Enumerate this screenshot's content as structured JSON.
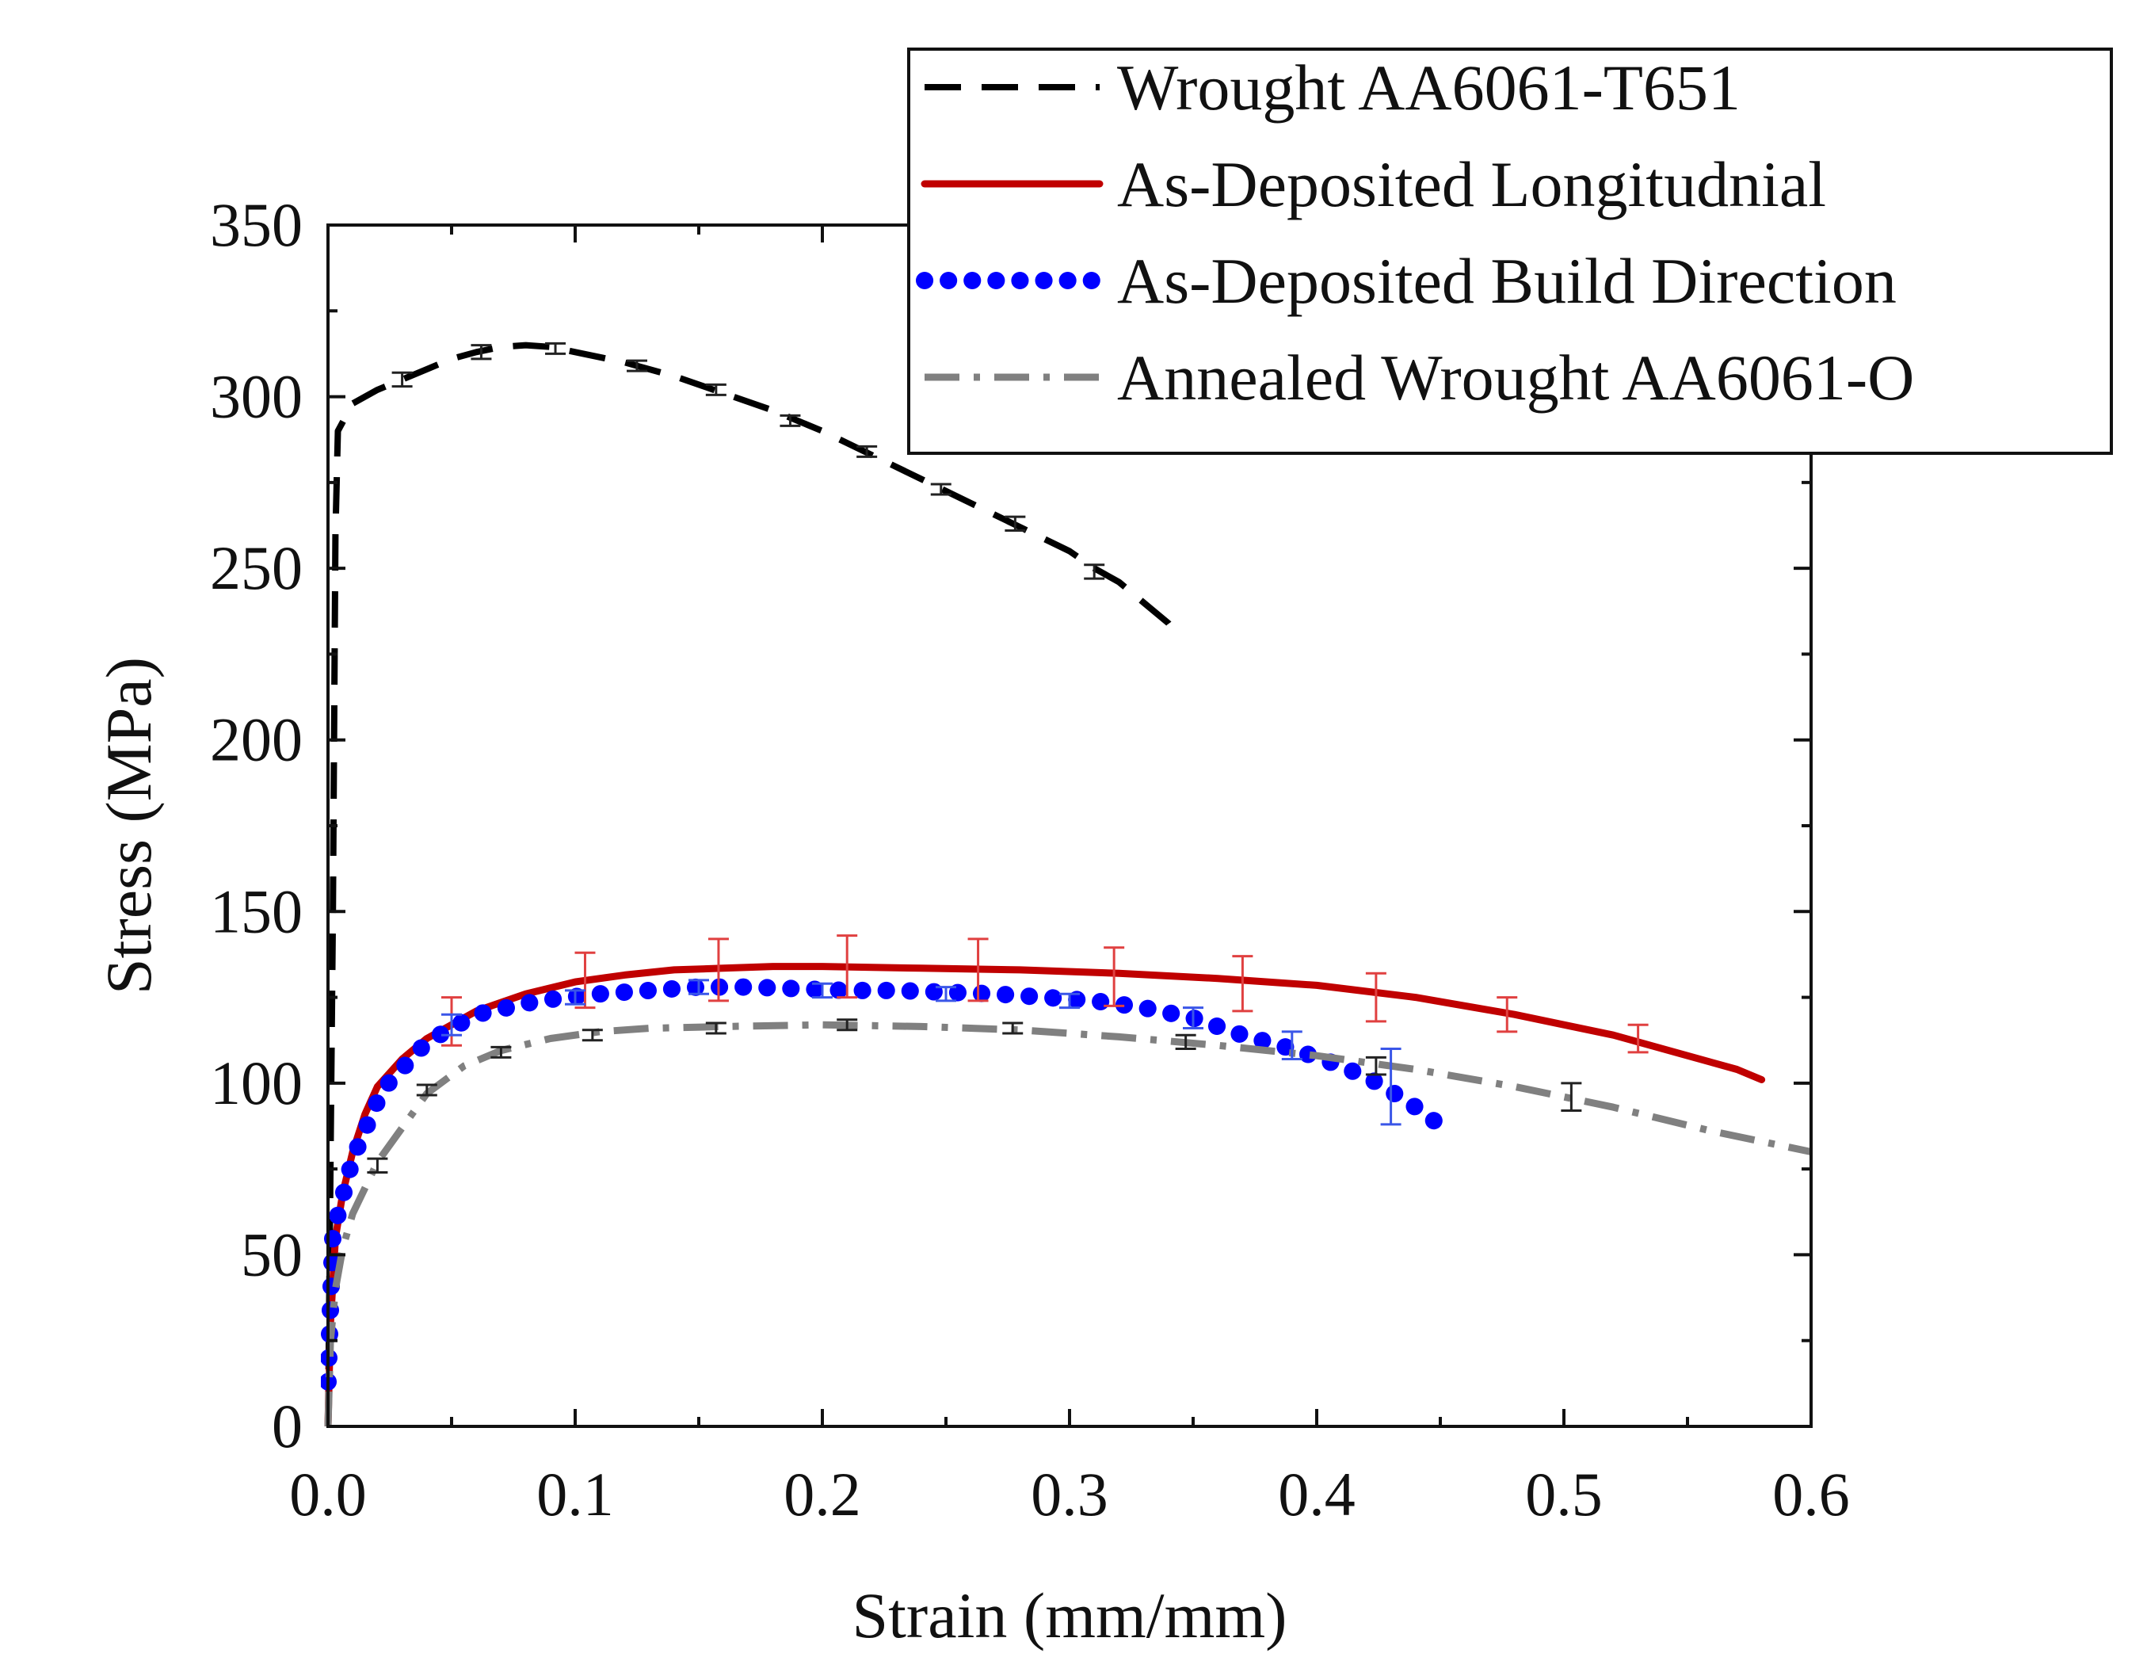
{
  "chart_data": {
    "type": "line",
    "title": "",
    "xlabel": "Strain (mm/mm)",
    "ylabel": "Stress (MPa)",
    "xlim": [
      0,
      0.6
    ],
    "ylim": [
      0,
      350
    ],
    "x_ticks": [
      0.0,
      0.1,
      0.2,
      0.3,
      0.4,
      0.5,
      0.6
    ],
    "x_tick_labels": [
      "0.0",
      "0.1",
      "0.2",
      "0.3",
      "0.4",
      "0.5",
      "0.6"
    ],
    "y_ticks": [
      0,
      50,
      100,
      150,
      200,
      250,
      300,
      350
    ],
    "y_tick_labels": [
      "0",
      "50",
      "100",
      "150",
      "200",
      "250",
      "300",
      "350"
    ],
    "grid": false,
    "legend_position": "top-right",
    "series": [
      {
        "name": "Wrought AA6061-T651",
        "color": "#000000",
        "style": "dashed",
        "points": [
          [
            0,
            0
          ],
          [
            0.002,
            150
          ],
          [
            0.003,
            260
          ],
          [
            0.004,
            290
          ],
          [
            0.01,
            298
          ],
          [
            0.02,
            302
          ],
          [
            0.03,
            305
          ],
          [
            0.04,
            308
          ],
          [
            0.05,
            311
          ],
          [
            0.06,
            313
          ],
          [
            0.07,
            314.5
          ],
          [
            0.08,
            315
          ],
          [
            0.09,
            314.5
          ],
          [
            0.1,
            313
          ],
          [
            0.12,
            310
          ],
          [
            0.14,
            306
          ],
          [
            0.16,
            301
          ],
          [
            0.18,
            296
          ],
          [
            0.2,
            290
          ],
          [
            0.22,
            283
          ],
          [
            0.24,
            276
          ],
          [
            0.26,
            269
          ],
          [
            0.28,
            262
          ],
          [
            0.3,
            255
          ],
          [
            0.31,
            250
          ],
          [
            0.32,
            246
          ],
          [
            0.33,
            240
          ],
          [
            0.34,
            234
          ],
          [
            0.345,
            229
          ]
        ],
        "error_bars": [
          [
            0.03,
            305,
            2
          ],
          [
            0.062,
            313,
            2
          ],
          [
            0.092,
            314,
            1.5
          ],
          [
            0.125,
            309,
            1.5
          ],
          [
            0.157,
            302,
            1.5
          ],
          [
            0.187,
            293,
            1.5
          ],
          [
            0.218,
            284,
            1.5
          ],
          [
            0.248,
            273,
            1.5
          ],
          [
            0.278,
            263,
            2
          ],
          [
            0.31,
            249,
            2
          ]
        ]
      },
      {
        "name": "As-Deposited Longitudnial",
        "color": "#c00000",
        "style": "solid",
        "points": [
          [
            0,
            0
          ],
          [
            0.001,
            30
          ],
          [
            0.003,
            55
          ],
          [
            0.006,
            68
          ],
          [
            0.01,
            80
          ],
          [
            0.015,
            91
          ],
          [
            0.02,
            99
          ],
          [
            0.03,
            107
          ],
          [
            0.04,
            113
          ],
          [
            0.05,
            117
          ],
          [
            0.06,
            121
          ],
          [
            0.08,
            126
          ],
          [
            0.1,
            129.5
          ],
          [
            0.12,
            131.5
          ],
          [
            0.14,
            133
          ],
          [
            0.16,
            133.5
          ],
          [
            0.18,
            134
          ],
          [
            0.2,
            134
          ],
          [
            0.24,
            133.5
          ],
          [
            0.28,
            133
          ],
          [
            0.32,
            132
          ],
          [
            0.36,
            130.5
          ],
          [
            0.4,
            128.5
          ],
          [
            0.44,
            125
          ],
          [
            0.48,
            120
          ],
          [
            0.52,
            114
          ],
          [
            0.55,
            108
          ],
          [
            0.57,
            104
          ],
          [
            0.58,
            101
          ]
        ],
        "error_bars": [
          [
            0.05,
            118,
            7
          ],
          [
            0.104,
            130,
            8
          ],
          [
            0.158,
            133,
            9
          ],
          [
            0.21,
            134,
            9
          ],
          [
            0.263,
            133,
            9
          ],
          [
            0.318,
            131,
            8.5
          ],
          [
            0.37,
            129,
            8
          ],
          [
            0.424,
            125,
            7
          ],
          [
            0.477,
            120,
            5
          ],
          [
            0.53,
            113,
            4
          ]
        ]
      },
      {
        "name": "As-Deposited Build Direction",
        "color": "#0000ff",
        "style": "dotted",
        "points": [
          [
            0,
            13
          ],
          [
            0.002,
            56
          ],
          [
            0.01,
            78
          ],
          [
            0.022,
            98
          ],
          [
            0.04,
            112
          ],
          [
            0.06,
            120
          ],
          [
            0.085,
            124
          ],
          [
            0.11,
            126
          ],
          [
            0.13,
            127
          ],
          [
            0.15,
            128
          ],
          [
            0.17,
            128
          ],
          [
            0.19,
            127.5
          ],
          [
            0.21,
            127
          ],
          [
            0.23,
            127
          ],
          [
            0.25,
            126.5
          ],
          [
            0.27,
            126
          ],
          [
            0.29,
            125
          ],
          [
            0.31,
            124
          ],
          [
            0.33,
            122
          ],
          [
            0.35,
            119
          ],
          [
            0.37,
            114
          ],
          [
            0.39,
            110
          ],
          [
            0.41,
            105
          ],
          [
            0.425,
            100
          ],
          [
            0.44,
            93
          ],
          [
            0.455,
            85
          ]
        ],
        "error_bars": [
          [
            0.05,
            117,
            3
          ],
          [
            0.1,
            125,
            2
          ],
          [
            0.15,
            128,
            2
          ],
          [
            0.2,
            127,
            2
          ],
          [
            0.25,
            126,
            2
          ],
          [
            0.3,
            124,
            2
          ],
          [
            0.35,
            119,
            3
          ],
          [
            0.39,
            111,
            4
          ],
          [
            0.43,
            99,
            11
          ]
        ]
      },
      {
        "name": "Annealed Wrought AA6061-O",
        "color": "#808080",
        "style": "dashdot",
        "points": [
          [
            0,
            0
          ],
          [
            0.001,
            25
          ],
          [
            0.003,
            40
          ],
          [
            0.006,
            52
          ],
          [
            0.01,
            62
          ],
          [
            0.02,
            77
          ],
          [
            0.03,
            87
          ],
          [
            0.04,
            97
          ],
          [
            0.055,
            105
          ],
          [
            0.07,
            109.5
          ],
          [
            0.09,
            113
          ],
          [
            0.11,
            115
          ],
          [
            0.13,
            116
          ],
          [
            0.16,
            116.5
          ],
          [
            0.2,
            117
          ],
          [
            0.24,
            116.5
          ],
          [
            0.28,
            115.5
          ],
          [
            0.32,
            113.5
          ],
          [
            0.36,
            111
          ],
          [
            0.4,
            108
          ],
          [
            0.44,
            104
          ],
          [
            0.48,
            99
          ],
          [
            0.52,
            93
          ],
          [
            0.56,
            86
          ],
          [
            0.6,
            80
          ]
        ],
        "error_bars": [
          [
            0.02,
            76,
            2
          ],
          [
            0.04,
            98,
            1.5
          ],
          [
            0.07,
            109,
            1.5
          ],
          [
            0.107,
            114,
            1.5
          ],
          [
            0.157,
            116,
            1.5
          ],
          [
            0.21,
            117,
            1.5
          ],
          [
            0.277,
            116,
            1.5
          ],
          [
            0.347,
            112,
            2
          ],
          [
            0.424,
            105,
            2.5
          ],
          [
            0.503,
            96,
            4
          ]
        ]
      }
    ]
  }
}
